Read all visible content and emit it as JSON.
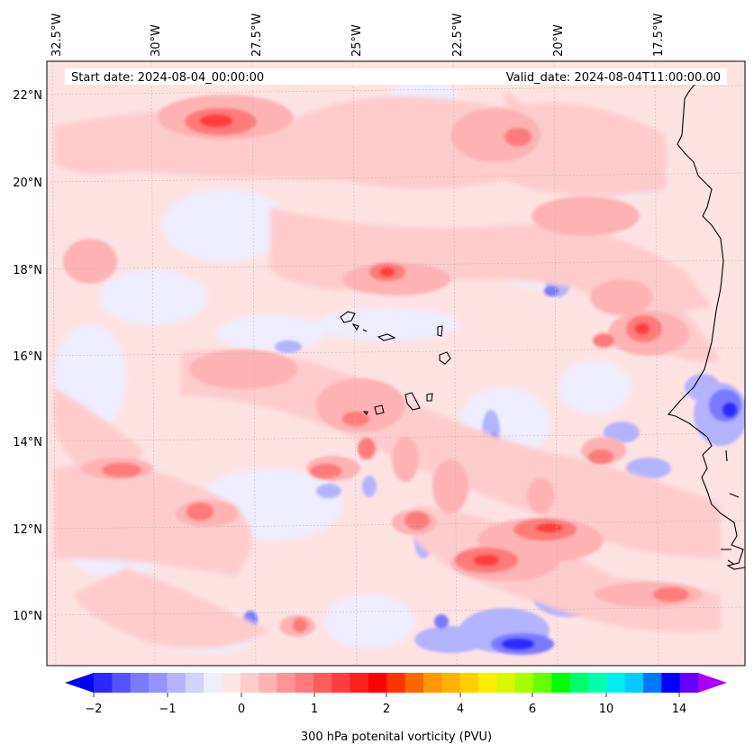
{
  "map": {
    "header": {
      "start_date": "Start date: 2024-08-04_00:00:00",
      "valid_date": "Valid_date: 2024-08-04T11:00:00.00"
    },
    "longitude_labels": [
      "32.5°W",
      "30°W",
      "27.5°W",
      "25°W",
      "22.5°W",
      "20°W",
      "17.5°W"
    ],
    "latitude_labels": [
      "22°N",
      "20°N",
      "18°N",
      "16°N",
      "14°N",
      "12°N",
      "10°N"
    ],
    "colorbar": {
      "label": "300 hPa potenital vorticity (PVU)",
      "tick_labels": [
        "−2",
        "−1",
        "0",
        "1",
        "2",
        "4",
        "6",
        "10",
        "14"
      ],
      "colors": [
        "#0000ff",
        "#2929ff",
        "#5252ff",
        "#7a7aff",
        "#9494ff",
        "#b3b3ff",
        "#d3d3ff",
        "#eeeeff",
        "#ffe6e6",
        "#ffcccc",
        "#ffb3b3",
        "#ff9494",
        "#ff7a7a",
        "#ff5c5c",
        "#ff3d3d",
        "#ff1f1f",
        "#ff0000",
        "#ff3300",
        "#ff6600",
        "#ff9900",
        "#ffb300",
        "#ffd000",
        "#ffee00",
        "#d9f700",
        "#a6ff00",
        "#66ff00",
        "#00ff00",
        "#00ff66",
        "#00ffaa",
        "#00eeee",
        "#00ccff",
        "#0077ff",
        "#0000ff",
        "#6600ff",
        "#aa00ff"
      ]
    }
  }
}
